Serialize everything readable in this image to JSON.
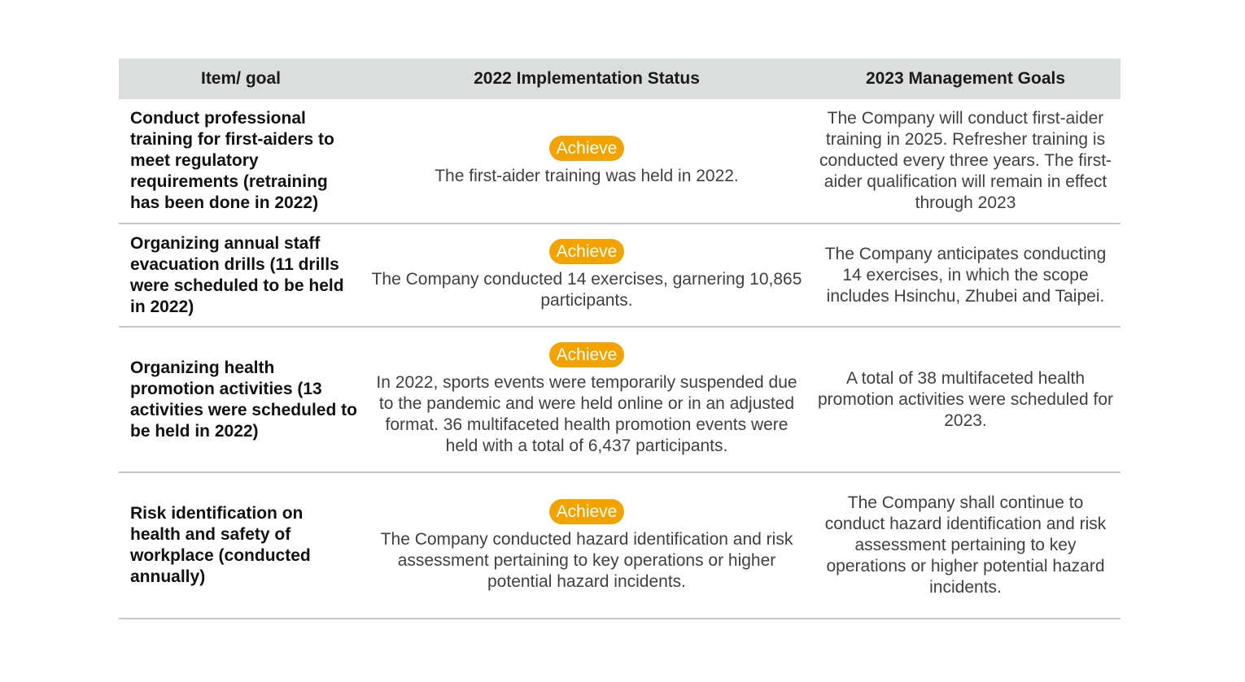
{
  "header": {
    "col1": "Item/ goal",
    "col2": "2022 Implementation Status",
    "col3": "2023 Management Goals"
  },
  "rows": [
    {
      "item": "Conduct professional training for first-aiders to meet regulatory requirements (retraining has been done in 2022)",
      "badge": "Achieve",
      "status": "The first-aider training was held in 2022.",
      "goal": "The Company will conduct first-aider training in 2025. Refresher training is conducted every three years. The first-aider qualification will remain in effect through 2023"
    },
    {
      "item": "Organizing annual staff evacuation drills (11 drills were scheduled to be held in 2022)",
      "badge": "Achieve",
      "status": "The Company conducted 14 exercises, garnering 10,865 participants.",
      "goal": "The Company anticipates conducting 14 exercises, in which the scope includes Hsinchu, Zhubei and Taipei."
    },
    {
      "item": "Organizing health promotion activities (13 activities were scheduled to be held in 2022)",
      "badge": "Achieve",
      "status": "In 2022, sports events were temporarily suspended due to the pandemic and were held online or in an adjusted format. 36 multifaceted health promotion events were held with a total of 6,437 participants.",
      "goal": "A total of 38 multifaceted health promotion activities were scheduled for 2023."
    },
    {
      "item": "Risk identification on health and safety of workplace (conducted annually)",
      "badge": "Achieve",
      "status": "The Company conducted hazard identification and risk assessment pertaining to key operations or higher potential hazard incidents.",
      "goal": "The Company shall continue to conduct hazard identification and risk assessment pertaining to key operations or higher potential hazard incidents."
    }
  ],
  "colors": {
    "header_bg": "#dcdddd",
    "badge_bg": "#f2a300",
    "row_divider": "#c8c8c8"
  }
}
